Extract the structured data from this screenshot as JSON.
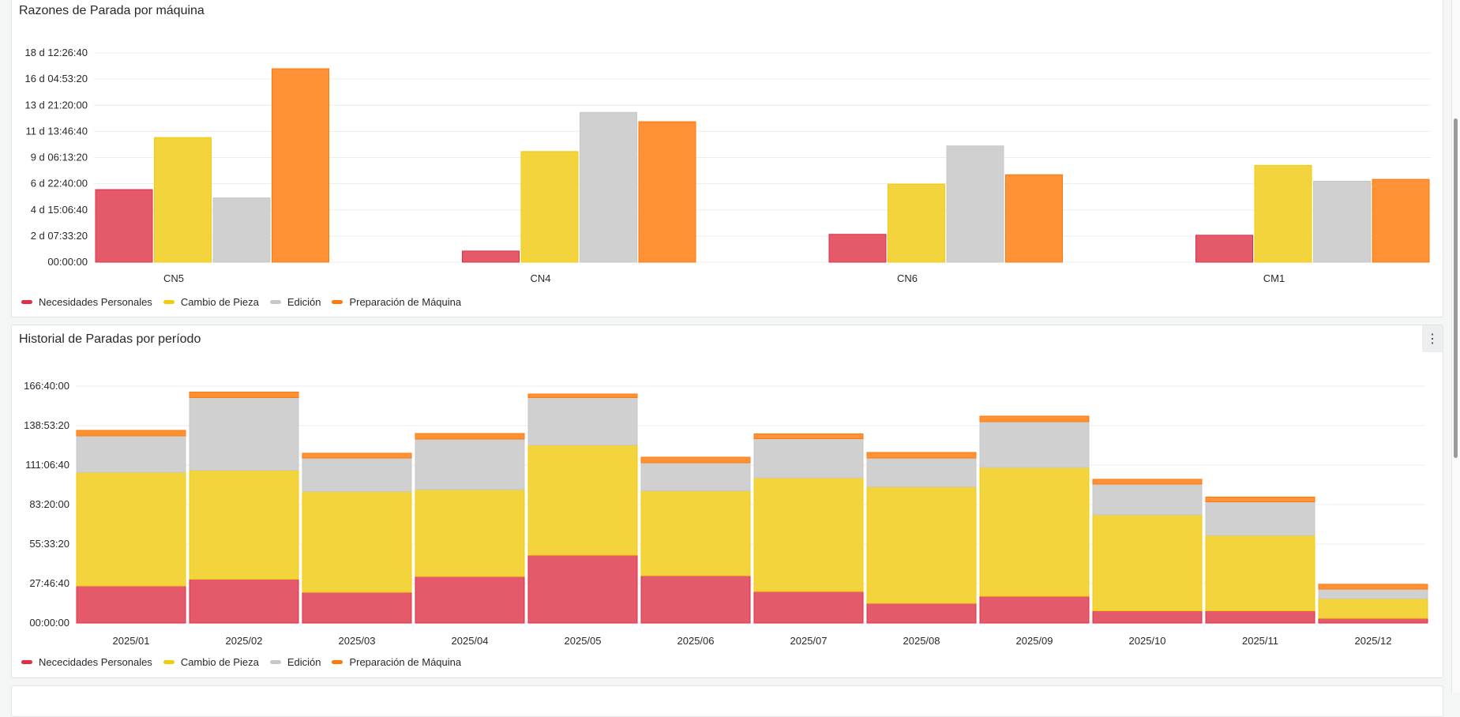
{
  "value_unit": "seconds",
  "colors": {
    "Necesidades Personales": "#e02f44",
    "Cambio de Pieza": "#f2cc0c",
    "Edición": "#c8c8c8",
    "Preparación de Máquina": "#ff780a"
  },
  "panels": [
    {
      "title": "Razones de Parada por máquina"
    },
    {
      "title": "Historial de Paradas por período",
      "menu_icon": "kebab-menu-icon"
    }
  ],
  "chart_data": [
    {
      "type": "bar",
      "title": "Razones de Parada por máquina",
      "categories": [
        "CN5",
        "CN4",
        "CN6",
        "CM1"
      ],
      "ylim": [
        0,
        1600000
      ],
      "y_ticks": [
        0,
        200000,
        400000,
        600000,
        800000,
        1000000,
        1200000,
        1400000,
        1600000
      ],
      "y_tick_labels": [
        "00:00:00",
        "2 d 07:33:20",
        "4 d 15:06:40",
        "6 d 22:40:00",
        "9 d 06:13:20",
        "11 d 13:46:40",
        "13 d 21:20:00",
        "16 d 04:53:20",
        "18 d 12:26:40"
      ],
      "grid": true,
      "legend_placement": "bottom-left",
      "series": [
        {
          "name": "Necesidades Personales",
          "values": [
            555000,
            85000,
            213000,
            206000
          ]
        },
        {
          "name": "Cambio de Pieza",
          "values": [
            953000,
            846000,
            597000,
            740000
          ]
        },
        {
          "name": "Edición",
          "values": [
            491000,
            1145000,
            889000,
            619000
          ]
        },
        {
          "name": "Preparación de Máquina",
          "values": [
            1479000,
            1074000,
            668000,
            633000
          ]
        }
      ]
    },
    {
      "type": "bar",
      "stacked": true,
      "title": "Historial de Paradas por período",
      "categories": [
        "2025/01",
        "2025/02",
        "2025/03",
        "2025/04",
        "2025/05",
        "2025/06",
        "2025/07",
        "2025/08",
        "2025/09",
        "2025/10",
        "2025/11",
        "2025/12"
      ],
      "ylim": [
        0,
        600000
      ],
      "y_ticks": [
        0,
        100000,
        200000,
        300000,
        400000,
        500000,
        600000
      ],
      "y_tick_labels": [
        "00:00:00",
        "27:46:40",
        "55:33:20",
        "83:20:00",
        "111:06:40",
        "138:53:20",
        "166:40:00"
      ],
      "grid": true,
      "legend_placement": "bottom-left",
      "series": [
        {
          "name": "Nececidades Personales",
          "values": [
            94000,
            111000,
            78000,
            118000,
            172000,
            120000,
            80000,
            50000,
            68000,
            31000,
            31000,
            12000
          ]
        },
        {
          "name": "Cambio de Pieza",
          "values": [
            288000,
            276000,
            255000,
            220000,
            279000,
            215000,
            288000,
            295000,
            326000,
            243000,
            191000,
            50000
          ]
        },
        {
          "name": "Edición",
          "values": [
            92000,
            184000,
            85000,
            128000,
            120000,
            71000,
            99000,
            73000,
            116000,
            78000,
            85000,
            24000
          ]
        },
        {
          "name": "Preparación de Máquina",
          "values": [
            14000,
            14000,
            12000,
            14000,
            9000,
            14000,
            12000,
            14000,
            14000,
            12000,
            12000,
            12000
          ]
        }
      ]
    }
  ]
}
